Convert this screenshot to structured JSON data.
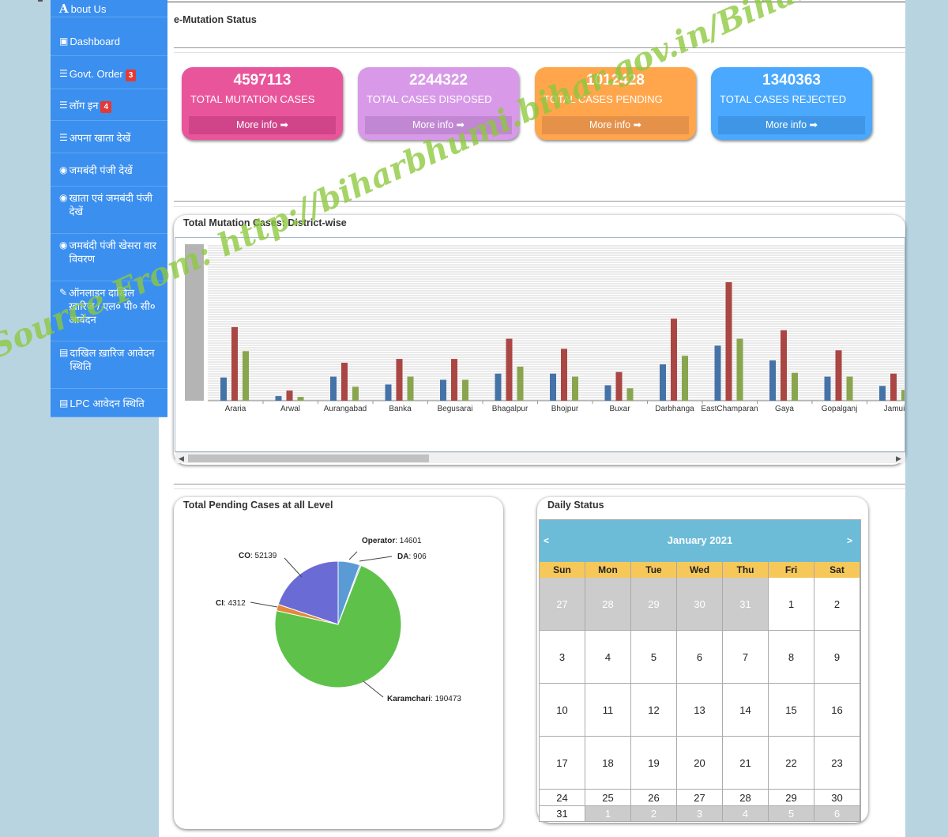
{
  "sidebar": {
    "items": [
      {
        "label": "bout Us",
        "prefix": "A",
        "icon": "a-icon"
      },
      {
        "label": "Dashboard",
        "icon": "dashboard-icon"
      },
      {
        "label": "Govt. Order",
        "badge": "3",
        "icon": "list-icon"
      },
      {
        "label": "लॉग इन",
        "badge": "4",
        "icon": "list-icon"
      },
      {
        "label": "अपना खाता देखें",
        "icon": "tasks-icon"
      },
      {
        "label": "जमबंदी पंजी देखें",
        "icon": "eye-icon"
      },
      {
        "label": "खाता एवं जमबंदी पंजी देखें",
        "icon": "eye-icon"
      },
      {
        "label": "जमबंदी पंजी खेसरा वार विवरण",
        "icon": "eye-icon"
      },
      {
        "label": "ऑनलाइन दाखिल ख़ारिज / एल० पी० सी० आवेदन",
        "icon": "edit-icon"
      },
      {
        "label": "दाखिल ख़ारिज आवेदन स्थिति",
        "icon": "list-alt-icon"
      },
      {
        "label": "LPC आवेदन स्थिति",
        "icon": "list-alt-icon"
      }
    ]
  },
  "page": {
    "title": "e-Mutation Status"
  },
  "stats": [
    {
      "number": "4597113",
      "label": "TOTAL MUTATION CASES",
      "more": "More info",
      "color": "#e9559b",
      "footer": "#d0458a"
    },
    {
      "number": "2244322",
      "label": "TOTAL CASES DISPOSED",
      "more": "More info",
      "color": "#d89ae8",
      "footer": "#c187d2"
    },
    {
      "number": "1012428",
      "label": "TOTAL CASES PENDING",
      "more": "More info",
      "color": "#ffa64d",
      "footer": "#e6914a"
    },
    {
      "number": "1340363",
      "label": "TOTAL CASES REJECTED",
      "more": "More info",
      "color": "#4aa8ff",
      "footer": "#3f96e6"
    }
  ],
  "district_chart_title": "Total Mutation Cases: District-wise",
  "pie_title": "Total Pending Cases at all Level",
  "calendar_title": "Daily Status",
  "chart_data": [
    {
      "type": "bar",
      "categories": [
        "Araria",
        "Arwal",
        "Aurangabad",
        "Banka",
        "Begusarai",
        "Bhagalpur",
        "Bhojpur",
        "Buxar",
        "Darbhanga",
        "EastChamparan",
        "Gaya",
        "Gopalganj",
        "Jamui"
      ],
      "series": [
        {
          "color": "#4572a7",
          "values": [
            30,
            6,
            31,
            21,
            27,
            35,
            35,
            20,
            47,
            71,
            52,
            31,
            19
          ]
        },
        {
          "color": "#aa4643",
          "values": [
            95,
            13,
            49,
            54,
            54,
            80,
            67,
            37,
            106,
            153,
            91,
            65,
            35
          ]
        },
        {
          "color": "#89a54e",
          "values": [
            64,
            5,
            18,
            31,
            27,
            44,
            31,
            16,
            58,
            80,
            36,
            31,
            14
          ]
        }
      ],
      "ylim": [
        0,
        200
      ]
    },
    {
      "type": "pie",
      "slices": [
        {
          "name": "Operator",
          "value": 14601,
          "color": "#5b9bd5"
        },
        {
          "name": "DA",
          "value": 906,
          "color": "#a0a0ff"
        },
        {
          "name": "Karamchari",
          "value": 190473,
          "color": "#5ec24a"
        },
        {
          "name": "CI",
          "value": 4312,
          "color": "#e08a3c"
        },
        {
          "name": "CO",
          "value": 52139,
          "color": "#6b6bd6"
        }
      ]
    }
  ],
  "calendar": {
    "month": "January 2021",
    "prev": "<",
    "next": ">",
    "days": [
      "Sun",
      "Mon",
      "Tue",
      "Wed",
      "Thu",
      "Fri",
      "Sat"
    ],
    "weeks": [
      [
        {
          "d": "27",
          "o": 1
        },
        {
          "d": "28",
          "o": 1
        },
        {
          "d": "29",
          "o": 1
        },
        {
          "d": "30",
          "o": 1
        },
        {
          "d": "31",
          "o": 1
        },
        {
          "d": "1",
          "o": 0
        },
        {
          "d": "2",
          "o": 0
        }
      ],
      [
        {
          "d": "3",
          "o": 0
        },
        {
          "d": "4",
          "o": 0
        },
        {
          "d": "5",
          "o": 0
        },
        {
          "d": "6",
          "o": 0
        },
        {
          "d": "7",
          "o": 0
        },
        {
          "d": "8",
          "o": 0
        },
        {
          "d": "9",
          "o": 0
        }
      ],
      [
        {
          "d": "10",
          "o": 0
        },
        {
          "d": "11",
          "o": 0
        },
        {
          "d": "12",
          "o": 0
        },
        {
          "d": "13",
          "o": 0
        },
        {
          "d": "14",
          "o": 0
        },
        {
          "d": "15",
          "o": 0
        },
        {
          "d": "16",
          "o": 0
        }
      ],
      [
        {
          "d": "17",
          "o": 0
        },
        {
          "d": "18",
          "o": 0
        },
        {
          "d": "19",
          "o": 0
        },
        {
          "d": "20",
          "o": 0
        },
        {
          "d": "21",
          "o": 0
        },
        {
          "d": "22",
          "o": 0
        },
        {
          "d": "23",
          "o": 0
        }
      ],
      [
        {
          "d": "24",
          "o": 0
        },
        {
          "d": "25",
          "o": 0
        },
        {
          "d": "26",
          "o": 0
        },
        {
          "d": "27",
          "o": 0
        },
        {
          "d": "28",
          "o": 0
        },
        {
          "d": "29",
          "o": 0
        },
        {
          "d": "30",
          "o": 0
        }
      ],
      [
        {
          "d": "31",
          "o": 0
        },
        {
          "d": "1",
          "o": 1
        },
        {
          "d": "2",
          "o": 1
        },
        {
          "d": "3",
          "o": 1
        },
        {
          "d": "4",
          "o": 1
        },
        {
          "d": "5",
          "o": 1
        },
        {
          "d": "6",
          "o": 1
        }
      ]
    ]
  },
  "watermark": "Source From: http://biharbhumi.bihar.gov.in/BiharBhumi/Default.aspx"
}
